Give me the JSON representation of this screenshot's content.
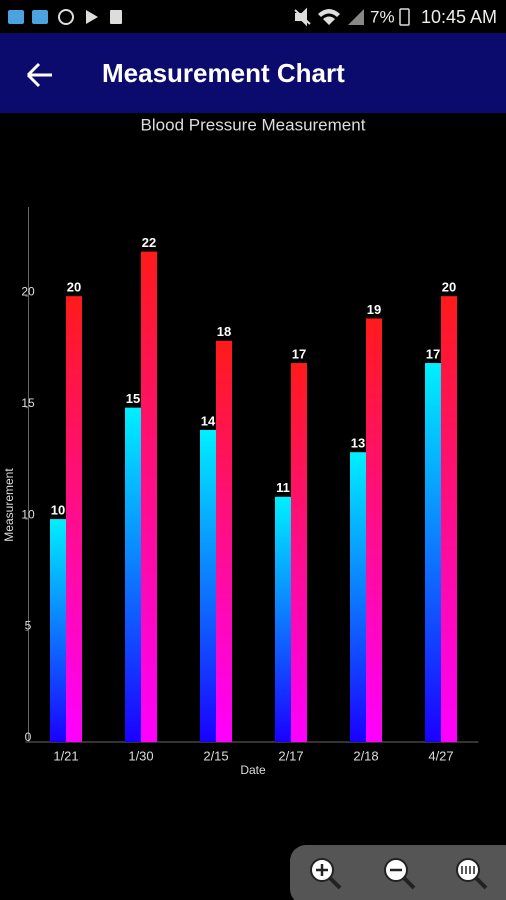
{
  "status_bar": {
    "battery": "7%",
    "time": "10:45 AM"
  },
  "app_bar": {
    "title": "Measurement Chart"
  },
  "chart_data": {
    "type": "bar",
    "title": "Blood Pressure Measurement",
    "x_label": "Date",
    "y_label": "Measurement",
    "categories": [
      "1/21",
      "1/30",
      "2/15",
      "2/17",
      "2/18",
      "4/27"
    ],
    "series": [
      {
        "color": [
          "#00f0ff",
          "#1a00ff"
        ],
        "values": [
          10,
          15,
          14,
          11,
          13,
          17
        ]
      },
      {
        "color": [
          "#ff1a1a",
          "#ff00ff"
        ],
        "values": [
          20,
          22,
          18,
          17,
          19,
          20
        ]
      }
    ],
    "ylim": [
      0,
      24
    ],
    "yticks": [
      0,
      5,
      10,
      15,
      20
    ],
    "grid": false
  }
}
